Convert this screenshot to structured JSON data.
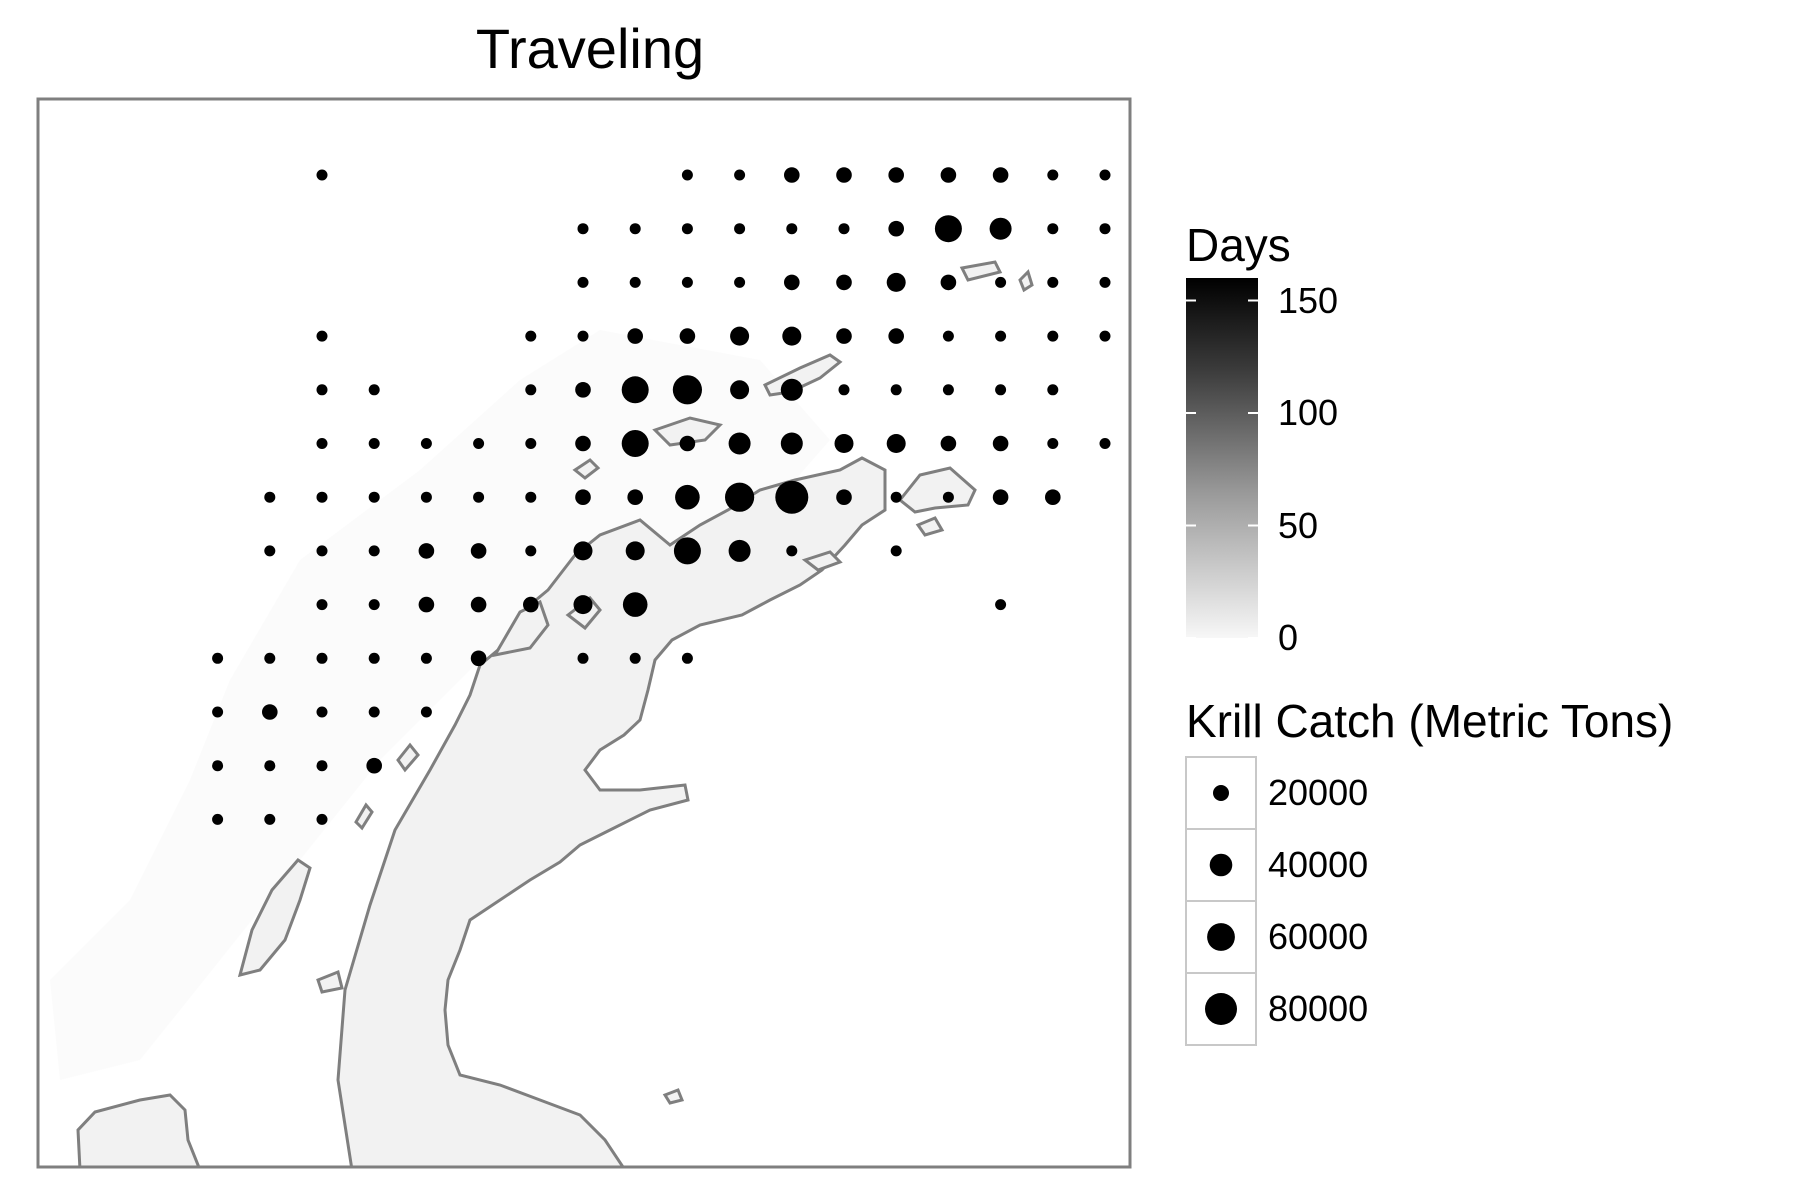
{
  "title": "Traveling",
  "colors": {
    "background": "#ffffff",
    "land": "#f2f2f2",
    "coastline": "#7f7f7f",
    "panel_border": "#7f7f7f",
    "points": "#000000",
    "days_low": "#f7f7f7",
    "days_high": "#000000"
  },
  "chart_data": {
    "type": "scatter",
    "title": "Traveling",
    "xlabel": "",
    "ylabel": "",
    "grid_columns": 17,
    "grid_rows": 13,
    "points": [
      {
        "col": 5,
        "row": 0,
        "catch": 10000
      },
      {
        "col": 12,
        "row": 0,
        "catch": 10000
      },
      {
        "col": 13,
        "row": 0,
        "catch": 10000
      },
      {
        "col": 14,
        "row": 0,
        "catch": 20000
      },
      {
        "col": 15,
        "row": 0,
        "catch": 20000
      },
      {
        "col": 16,
        "row": 0,
        "catch": 20000
      },
      {
        "col": 17,
        "row": 0,
        "catch": 20000
      },
      {
        "col": 18,
        "row": 0,
        "catch": 20000
      },
      {
        "col": 19,
        "row": 0,
        "catch": 10000
      },
      {
        "col": 20,
        "row": 0,
        "catch": 10000
      },
      {
        "col": 10,
        "row": 1,
        "catch": 10000
      },
      {
        "col": 11,
        "row": 1,
        "catch": 10000
      },
      {
        "col": 12,
        "row": 1,
        "catch": 10000
      },
      {
        "col": 13,
        "row": 1,
        "catch": 10000
      },
      {
        "col": 14,
        "row": 1,
        "catch": 10000
      },
      {
        "col": 15,
        "row": 1,
        "catch": 10000
      },
      {
        "col": 16,
        "row": 1,
        "catch": 20000
      },
      {
        "col": 17,
        "row": 1,
        "catch": 60000
      },
      {
        "col": 18,
        "row": 1,
        "catch": 40000
      },
      {
        "col": 19,
        "row": 1,
        "catch": 10000
      },
      {
        "col": 20,
        "row": 1,
        "catch": 10000
      },
      {
        "col": 10,
        "row": 2,
        "catch": 10000
      },
      {
        "col": 11,
        "row": 2,
        "catch": 10000
      },
      {
        "col": 12,
        "row": 2,
        "catch": 10000
      },
      {
        "col": 13,
        "row": 2,
        "catch": 10000
      },
      {
        "col": 14,
        "row": 2,
        "catch": 20000
      },
      {
        "col": 15,
        "row": 2,
        "catch": 20000
      },
      {
        "col": 16,
        "row": 2,
        "catch": 30000
      },
      {
        "col": 17,
        "row": 2,
        "catch": 20000
      },
      {
        "col": 18,
        "row": 2,
        "catch": 10000
      },
      {
        "col": 19,
        "row": 2,
        "catch": 10000
      },
      {
        "col": 20,
        "row": 2,
        "catch": 10000
      },
      {
        "col": 5,
        "row": 3,
        "catch": 10000
      },
      {
        "col": 9,
        "row": 3,
        "catch": 10000
      },
      {
        "col": 10,
        "row": 3,
        "catch": 10000
      },
      {
        "col": 11,
        "row": 3,
        "catch": 20000
      },
      {
        "col": 12,
        "row": 3,
        "catch": 20000
      },
      {
        "col": 13,
        "row": 3,
        "catch": 30000
      },
      {
        "col": 14,
        "row": 3,
        "catch": 30000
      },
      {
        "col": 15,
        "row": 3,
        "catch": 20000
      },
      {
        "col": 16,
        "row": 3,
        "catch": 20000
      },
      {
        "col": 17,
        "row": 3,
        "catch": 10000
      },
      {
        "col": 18,
        "row": 3,
        "catch": 10000
      },
      {
        "col": 19,
        "row": 3,
        "catch": 10000
      },
      {
        "col": 20,
        "row": 3,
        "catch": 10000
      },
      {
        "col": 5,
        "row": 4,
        "catch": 10000
      },
      {
        "col": 6,
        "row": 4,
        "catch": 10000
      },
      {
        "col": 9,
        "row": 4,
        "catch": 10000
      },
      {
        "col": 10,
        "row": 4,
        "catch": 20000
      },
      {
        "col": 11,
        "row": 4,
        "catch": 60000
      },
      {
        "col": 12,
        "row": 4,
        "catch": 70000
      },
      {
        "col": 13,
        "row": 4,
        "catch": 30000
      },
      {
        "col": 14,
        "row": 4,
        "catch": 40000
      },
      {
        "col": 15,
        "row": 4,
        "catch": 10000
      },
      {
        "col": 16,
        "row": 4,
        "catch": 10000
      },
      {
        "col": 17,
        "row": 4,
        "catch": 10000
      },
      {
        "col": 18,
        "row": 4,
        "catch": 10000
      },
      {
        "col": 19,
        "row": 4,
        "catch": 10000
      },
      {
        "col": 5,
        "row": 5,
        "catch": 10000
      },
      {
        "col": 6,
        "row": 5,
        "catch": 10000
      },
      {
        "col": 7,
        "row": 5,
        "catch": 10000
      },
      {
        "col": 8,
        "row": 5,
        "catch": 10000
      },
      {
        "col": 9,
        "row": 5,
        "catch": 10000
      },
      {
        "col": 10,
        "row": 5,
        "catch": 20000
      },
      {
        "col": 11,
        "row": 5,
        "catch": 60000
      },
      {
        "col": 12,
        "row": 5,
        "catch": 20000
      },
      {
        "col": 13,
        "row": 5,
        "catch": 40000
      },
      {
        "col": 14,
        "row": 5,
        "catch": 40000
      },
      {
        "col": 15,
        "row": 5,
        "catch": 30000
      },
      {
        "col": 16,
        "row": 5,
        "catch": 30000
      },
      {
        "col": 17,
        "row": 5,
        "catch": 20000
      },
      {
        "col": 18,
        "row": 5,
        "catch": 20000
      },
      {
        "col": 19,
        "row": 5,
        "catch": 10000
      },
      {
        "col": 20,
        "row": 5,
        "catch": 10000
      },
      {
        "col": 4,
        "row": 6,
        "catch": 10000
      },
      {
        "col": 5,
        "row": 6,
        "catch": 10000
      },
      {
        "col": 6,
        "row": 6,
        "catch": 10000
      },
      {
        "col": 7,
        "row": 6,
        "catch": 10000
      },
      {
        "col": 8,
        "row": 6,
        "catch": 10000
      },
      {
        "col": 9,
        "row": 6,
        "catch": 10000
      },
      {
        "col": 10,
        "row": 6,
        "catch": 20000
      },
      {
        "col": 11,
        "row": 6,
        "catch": 20000
      },
      {
        "col": 12,
        "row": 6,
        "catch": 50000
      },
      {
        "col": 13,
        "row": 6,
        "catch": 70000
      },
      {
        "col": 14,
        "row": 6,
        "catch": 90000
      },
      {
        "col": 15,
        "row": 6,
        "catch": 20000
      },
      {
        "col": 16,
        "row": 6,
        "catch": 10000
      },
      {
        "col": 17,
        "row": 6,
        "catch": 10000
      },
      {
        "col": 18,
        "row": 6,
        "catch": 20000
      },
      {
        "col": 19,
        "row": 6,
        "catch": 20000
      },
      {
        "col": 4,
        "row": 7,
        "catch": 10000
      },
      {
        "col": 5,
        "row": 7,
        "catch": 10000
      },
      {
        "col": 6,
        "row": 7,
        "catch": 10000
      },
      {
        "col": 7,
        "row": 7,
        "catch": 20000
      },
      {
        "col": 8,
        "row": 7,
        "catch": 20000
      },
      {
        "col": 9,
        "row": 7,
        "catch": 10000
      },
      {
        "col": 10,
        "row": 7,
        "catch": 30000
      },
      {
        "col": 11,
        "row": 7,
        "catch": 30000
      },
      {
        "col": 12,
        "row": 7,
        "catch": 60000
      },
      {
        "col": 13,
        "row": 7,
        "catch": 40000
      },
      {
        "col": 14,
        "row": 7,
        "catch": 10000
      },
      {
        "col": 16,
        "row": 7,
        "catch": 10000
      },
      {
        "col": 5,
        "row": 8,
        "catch": 10000
      },
      {
        "col": 6,
        "row": 8,
        "catch": 10000
      },
      {
        "col": 7,
        "row": 8,
        "catch": 20000
      },
      {
        "col": 8,
        "row": 8,
        "catch": 20000
      },
      {
        "col": 9,
        "row": 8,
        "catch": 20000
      },
      {
        "col": 10,
        "row": 8,
        "catch": 30000
      },
      {
        "col": 11,
        "row": 8,
        "catch": 50000
      },
      {
        "col": 18,
        "row": 8,
        "catch": 10000
      },
      {
        "col": 3,
        "row": 9,
        "catch": 10000
      },
      {
        "col": 4,
        "row": 9,
        "catch": 10000
      },
      {
        "col": 5,
        "row": 9,
        "catch": 10000
      },
      {
        "col": 6,
        "row": 9,
        "catch": 10000
      },
      {
        "col": 7,
        "row": 9,
        "catch": 10000
      },
      {
        "col": 8,
        "row": 9,
        "catch": 20000
      },
      {
        "col": 10,
        "row": 9,
        "catch": 10000
      },
      {
        "col": 11,
        "row": 9,
        "catch": 10000
      },
      {
        "col": 12,
        "row": 9,
        "catch": 10000
      },
      {
        "col": 3,
        "row": 10,
        "catch": 10000
      },
      {
        "col": 4,
        "row": 10,
        "catch": 20000
      },
      {
        "col": 5,
        "row": 10,
        "catch": 10000
      },
      {
        "col": 6,
        "row": 10,
        "catch": 10000
      },
      {
        "col": 7,
        "row": 10,
        "catch": 10000
      },
      {
        "col": 3,
        "row": 11,
        "catch": 10000
      },
      {
        "col": 4,
        "row": 11,
        "catch": 10000
      },
      {
        "col": 5,
        "row": 11,
        "catch": 10000
      },
      {
        "col": 6,
        "row": 11,
        "catch": 20000
      },
      {
        "col": 3,
        "row": 12,
        "catch": 10000
      },
      {
        "col": 4,
        "row": 12,
        "catch": 10000
      },
      {
        "col": 5,
        "row": 12,
        "catch": 10000
      }
    ],
    "legend_days": {
      "title": "Days",
      "ticks": [
        {
          "value": 150,
          "label": "150"
        },
        {
          "value": 100,
          "label": "100"
        },
        {
          "value": 50,
          "label": "50"
        },
        {
          "value": 0,
          "label": "0"
        }
      ],
      "range": [
        0,
        160
      ]
    },
    "legend_catch": {
      "title": "Krill Catch (Metric Tons)",
      "keys": [
        {
          "value": 20000,
          "label": "20000"
        },
        {
          "value": 40000,
          "label": "40000"
        },
        {
          "value": 60000,
          "label": "60000"
        },
        {
          "value": 80000,
          "label": "80000"
        }
      ]
    },
    "legend_position": "right"
  }
}
